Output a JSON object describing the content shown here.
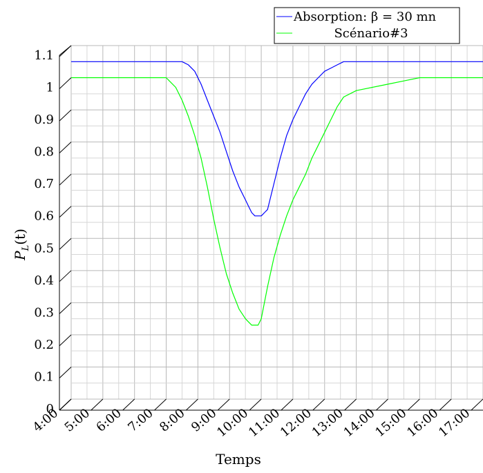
{
  "chart_data": {
    "type": "line",
    "title": "",
    "xlabel": "Temps",
    "ylabel": "P_L(t)",
    "ylabel_parts": {
      "main": "P",
      "sub": "L",
      "rest": "(t)"
    },
    "xlim": [
      4,
      17
    ],
    "ylim": [
      0,
      1.1
    ],
    "x_ticks": [
      4,
      5,
      6,
      7,
      8,
      9,
      10,
      11,
      12,
      13,
      14,
      15,
      16,
      17
    ],
    "x_tick_labels": [
      "4:00",
      "5:00",
      "6:00",
      "7:00",
      "8:00",
      "9:00",
      "10:00",
      "11:00",
      "12:00",
      "13:00",
      "14:00",
      "15:00",
      "16:00",
      "17:00"
    ],
    "y_ticks": [
      0,
      0.1,
      0.2,
      0.3,
      0.4,
      0.5,
      0.6,
      0.7,
      0.8,
      0.9,
      1,
      1.1
    ],
    "y_tick_labels": [
      "0",
      "0.1",
      "0.2",
      "0.3",
      "0.4",
      "0.5",
      "0.6",
      "0.7",
      "0.8",
      "0.9",
      "1",
      "1.1"
    ],
    "grid": true,
    "legend_position": "top-right",
    "series": [
      {
        "name": "Absorption: β = 30 mn",
        "color": "#0000ff",
        "x": [
          4.0,
          7.5,
          7.7,
          7.9,
          8.1,
          8.3,
          8.5,
          8.7,
          8.9,
          9.1,
          9.3,
          9.5,
          9.6,
          9.7,
          9.8,
          9.9,
          10.0,
          10.1,
          10.2,
          10.4,
          10.6,
          10.8,
          11.0,
          11.2,
          11.4,
          11.6,
          11.8,
          12.0,
          12.2,
          12.4,
          12.6,
          12.8,
          13.0,
          17.0
        ],
        "y": [
          1.05,
          1.05,
          1.04,
          1.02,
          0.98,
          0.93,
          0.88,
          0.83,
          0.77,
          0.71,
          0.66,
          0.62,
          0.6,
          0.58,
          0.57,
          0.57,
          0.57,
          0.58,
          0.59,
          0.67,
          0.75,
          0.82,
          0.87,
          0.91,
          0.95,
          0.98,
          1.0,
          1.02,
          1.03,
          1.04,
          1.05,
          1.05,
          1.05,
          1.05
        ]
      },
      {
        "name": "Scénario#3",
        "color": "#00ff00",
        "x": [
          4.0,
          7.0,
          7.1,
          7.3,
          7.5,
          7.7,
          7.9,
          8.1,
          8.3,
          8.5,
          8.7,
          8.9,
          9.1,
          9.3,
          9.5,
          9.6,
          9.7,
          9.8,
          9.9,
          10.0,
          10.2,
          10.4,
          10.6,
          10.8,
          11.0,
          11.2,
          11.4,
          11.6,
          11.8,
          12.0,
          12.2,
          12.4,
          12.6,
          13.0,
          14.0,
          14.5,
          15.0,
          17.0
        ],
        "y": [
          1.0,
          1.0,
          0.99,
          0.97,
          0.93,
          0.88,
          0.82,
          0.75,
          0.66,
          0.56,
          0.47,
          0.39,
          0.33,
          0.28,
          0.25,
          0.24,
          0.23,
          0.23,
          0.23,
          0.25,
          0.35,
          0.44,
          0.51,
          0.57,
          0.62,
          0.66,
          0.7,
          0.75,
          0.79,
          0.83,
          0.87,
          0.91,
          0.94,
          0.96,
          0.98,
          0.99,
          1.0,
          1.0
        ]
      }
    ]
  }
}
